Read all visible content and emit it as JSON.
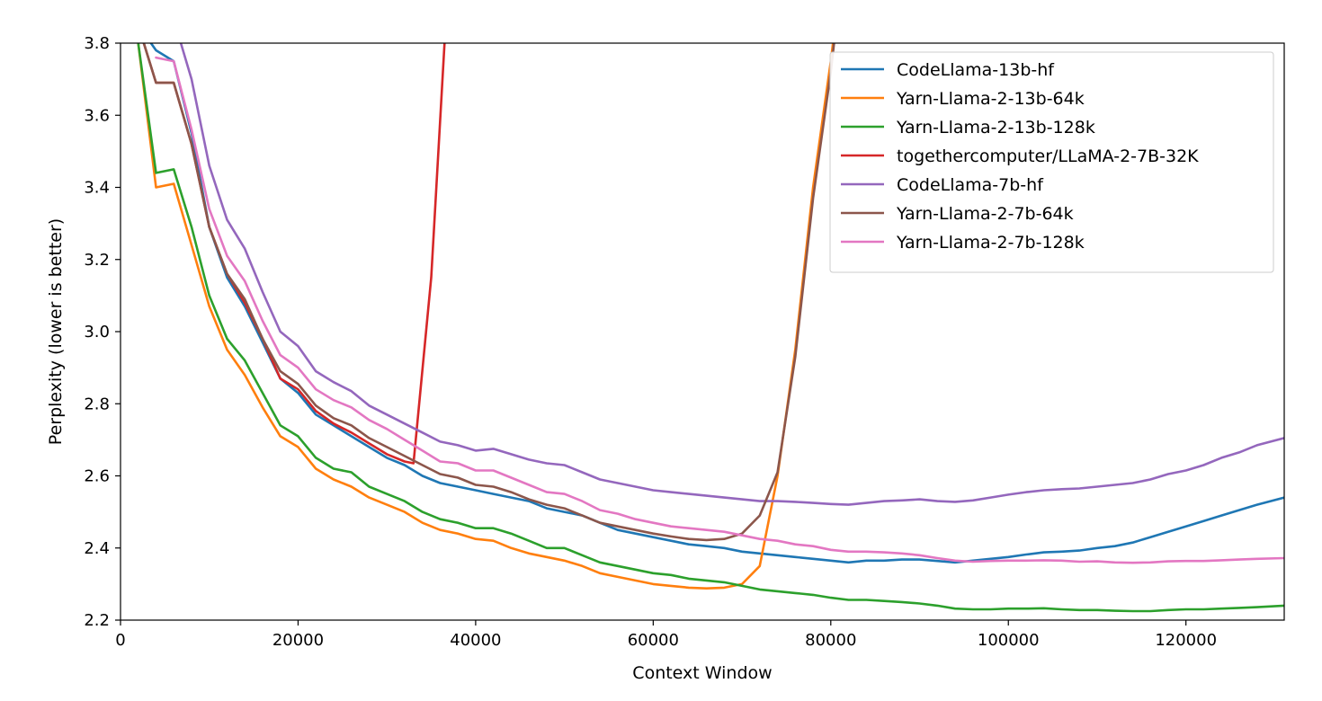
{
  "chart_data": {
    "type": "line",
    "title": "",
    "xlabel": "Context Window",
    "ylabel": "Perplexity (lower is better)",
    "xlim": [
      0,
      131072
    ],
    "ylim": [
      2.2,
      3.8
    ],
    "xticks": [
      0,
      20000,
      40000,
      60000,
      80000,
      100000,
      120000
    ],
    "yticks": [
      2.2,
      2.4,
      2.6,
      2.8,
      3.0,
      3.2,
      3.4,
      3.6,
      3.8
    ],
    "xtick_labels": [
      "0",
      "20000",
      "40000",
      "60000",
      "80000",
      "100000",
      "120000"
    ],
    "ytick_labels": [
      "2.2",
      "2.4",
      "2.6",
      "2.8",
      "3.0",
      "3.2",
      "3.4",
      "3.6",
      "3.8"
    ],
    "grid": false,
    "legend_position": "top-right",
    "series": [
      {
        "name": "CodeLlama-13b-hf",
        "color": "#1f77b4",
        "x": [
          2000,
          4000,
          6000,
          8000,
          10000,
          12000,
          14000,
          16000,
          18000,
          20000,
          22000,
          24000,
          26000,
          28000,
          30000,
          32000,
          34000,
          36000,
          38000,
          40000,
          42000,
          44000,
          46000,
          48000,
          50000,
          52000,
          54000,
          56000,
          58000,
          60000,
          62000,
          64000,
          66000,
          68000,
          70000,
          72000,
          74000,
          76000,
          78000,
          80000,
          82000,
          84000,
          86000,
          88000,
          90000,
          92000,
          94000,
          96000,
          98000,
          100000,
          102000,
          104000,
          106000,
          108000,
          110000,
          112000,
          114000,
          116000,
          118000,
          120000,
          122000,
          124000,
          126000,
          128000,
          131072
        ],
        "y": [
          3.85,
          3.78,
          3.75,
          3.55,
          3.29,
          3.15,
          3.07,
          2.97,
          2.87,
          2.83,
          2.77,
          2.74,
          2.71,
          2.68,
          2.65,
          2.63,
          2.6,
          2.58,
          2.57,
          2.56,
          2.55,
          2.54,
          2.53,
          2.51,
          2.5,
          2.49,
          2.47,
          2.45,
          2.44,
          2.43,
          2.42,
          2.41,
          2.405,
          2.4,
          2.39,
          2.385,
          2.38,
          2.375,
          2.37,
          2.365,
          2.36,
          2.365,
          2.365,
          2.368,
          2.368,
          2.364,
          2.36,
          2.365,
          2.37,
          2.375,
          2.382,
          2.388,
          2.39,
          2.393,
          2.4,
          2.405,
          2.415,
          2.43,
          2.445,
          2.46,
          2.475,
          2.49,
          2.505,
          2.52,
          2.54
        ]
      },
      {
        "name": "Yarn-Llama-2-13b-64k",
        "color": "#ff7f0e",
        "x": [
          2000,
          4000,
          6000,
          8000,
          10000,
          12000,
          14000,
          16000,
          18000,
          20000,
          22000,
          24000,
          26000,
          28000,
          30000,
          32000,
          34000,
          36000,
          38000,
          40000,
          42000,
          44000,
          46000,
          48000,
          50000,
          52000,
          54000,
          56000,
          58000,
          60000,
          62000,
          64000,
          66000,
          68000,
          70000,
          72000,
          74000,
          76000,
          78000,
          80000,
          80500
        ],
        "y": [
          3.8,
          3.4,
          3.41,
          3.24,
          3.07,
          2.95,
          2.88,
          2.79,
          2.71,
          2.68,
          2.62,
          2.59,
          2.57,
          2.54,
          2.52,
          2.5,
          2.47,
          2.45,
          2.44,
          2.425,
          2.42,
          2.4,
          2.385,
          2.375,
          2.365,
          2.35,
          2.33,
          2.32,
          2.31,
          2.3,
          2.295,
          2.29,
          2.288,
          2.29,
          2.3,
          2.35,
          2.6,
          2.95,
          3.4,
          3.75,
          3.85
        ]
      },
      {
        "name": "Yarn-Llama-2-13b-128k",
        "color": "#2ca02c",
        "x": [
          2000,
          4000,
          6000,
          8000,
          10000,
          12000,
          14000,
          16000,
          18000,
          20000,
          22000,
          24000,
          26000,
          28000,
          30000,
          32000,
          34000,
          36000,
          38000,
          40000,
          42000,
          44000,
          46000,
          48000,
          50000,
          52000,
          54000,
          56000,
          58000,
          60000,
          62000,
          64000,
          66000,
          68000,
          70000,
          72000,
          74000,
          76000,
          78000,
          80000,
          82000,
          84000,
          86000,
          88000,
          90000,
          92000,
          94000,
          96000,
          98000,
          100000,
          102000,
          104000,
          106000,
          108000,
          110000,
          112000,
          114000,
          116000,
          118000,
          120000,
          122000,
          124000,
          126000,
          128000,
          131072
        ],
        "y": [
          3.8,
          3.44,
          3.45,
          3.29,
          3.1,
          2.98,
          2.92,
          2.83,
          2.74,
          2.71,
          2.65,
          2.62,
          2.61,
          2.57,
          2.55,
          2.53,
          2.5,
          2.48,
          2.47,
          2.455,
          2.455,
          2.44,
          2.42,
          2.4,
          2.4,
          2.38,
          2.36,
          2.35,
          2.34,
          2.33,
          2.325,
          2.315,
          2.31,
          2.305,
          2.295,
          2.285,
          2.28,
          2.275,
          2.27,
          2.262,
          2.256,
          2.256,
          2.253,
          2.25,
          2.246,
          2.24,
          2.232,
          2.23,
          2.23,
          2.232,
          2.232,
          2.233,
          2.23,
          2.228,
          2.228,
          2.226,
          2.225,
          2.225,
          2.228,
          2.23,
          2.23,
          2.232,
          2.234,
          2.236,
          2.24
        ]
      },
      {
        "name": "togethercomputer/LLaMA-2-7B-32K",
        "color": "#d62728",
        "x": [
          2000,
          4000,
          6000,
          8000,
          10000,
          12000,
          14000,
          16000,
          18000,
          20000,
          22000,
          24000,
          26000,
          28000,
          30000,
          32000,
          33000,
          35000,
          36500
        ],
        "y": [
          3.85,
          3.69,
          3.69,
          3.52,
          3.29,
          3.16,
          3.08,
          2.98,
          2.87,
          2.84,
          2.78,
          2.745,
          2.72,
          2.69,
          2.66,
          2.64,
          2.635,
          3.15,
          3.8
        ]
      },
      {
        "name": "CodeLlama-7b-hf",
        "color": "#9467bd",
        "x": [
          6800,
          8000,
          10000,
          12000,
          14000,
          16000,
          18000,
          20000,
          22000,
          24000,
          26000,
          28000,
          30000,
          32000,
          34000,
          36000,
          38000,
          40000,
          42000,
          44000,
          46000,
          48000,
          50000,
          52000,
          54000,
          56000,
          58000,
          60000,
          62000,
          64000,
          66000,
          68000,
          70000,
          72000,
          74000,
          76000,
          78000,
          80000,
          82000,
          84000,
          86000,
          88000,
          90000,
          92000,
          94000,
          96000,
          98000,
          100000,
          102000,
          104000,
          106000,
          108000,
          110000,
          112000,
          114000,
          116000,
          118000,
          120000,
          122000,
          124000,
          126000,
          128000,
          131072
        ],
        "y": [
          3.8,
          3.7,
          3.46,
          3.31,
          3.23,
          3.11,
          3.0,
          2.96,
          2.89,
          2.86,
          2.835,
          2.795,
          2.77,
          2.745,
          2.72,
          2.695,
          2.685,
          2.67,
          2.675,
          2.66,
          2.645,
          2.635,
          2.63,
          2.61,
          2.59,
          2.58,
          2.57,
          2.56,
          2.555,
          2.55,
          2.545,
          2.54,
          2.535,
          2.53,
          2.53,
          2.528,
          2.525,
          2.522,
          2.52,
          2.525,
          2.53,
          2.532,
          2.535,
          2.53,
          2.528,
          2.532,
          2.54,
          2.548,
          2.555,
          2.56,
          2.563,
          2.565,
          2.57,
          2.575,
          2.58,
          2.59,
          2.605,
          2.615,
          2.63,
          2.65,
          2.665,
          2.685,
          2.705
        ]
      },
      {
        "name": "Yarn-Llama-2-7b-64k",
        "color": "#8c564b",
        "x": [
          2000,
          4000,
          6000,
          8000,
          10000,
          12000,
          14000,
          16000,
          18000,
          20000,
          22000,
          24000,
          26000,
          28000,
          30000,
          32000,
          34000,
          36000,
          38000,
          40000,
          42000,
          44000,
          46000,
          48000,
          50000,
          52000,
          54000,
          56000,
          58000,
          60000,
          62000,
          64000,
          66000,
          68000,
          70000,
          72000,
          74000,
          76000,
          78000,
          80000,
          80600
        ],
        "y": [
          3.85,
          3.69,
          3.69,
          3.52,
          3.29,
          3.16,
          3.09,
          2.98,
          2.89,
          2.855,
          2.795,
          2.76,
          2.74,
          2.705,
          2.68,
          2.655,
          2.63,
          2.605,
          2.595,
          2.575,
          2.57,
          2.555,
          2.535,
          2.52,
          2.51,
          2.49,
          2.47,
          2.46,
          2.45,
          2.44,
          2.432,
          2.425,
          2.422,
          2.425,
          2.44,
          2.49,
          2.61,
          2.93,
          3.37,
          3.72,
          3.85
        ]
      },
      {
        "name": "Yarn-Llama-2-7b-128k",
        "color": "#e377c2",
        "x": [
          4000,
          6000,
          8000,
          10000,
          12000,
          14000,
          16000,
          18000,
          20000,
          22000,
          24000,
          26000,
          28000,
          30000,
          32000,
          34000,
          36000,
          38000,
          40000,
          42000,
          44000,
          46000,
          48000,
          50000,
          52000,
          54000,
          56000,
          58000,
          60000,
          62000,
          64000,
          66000,
          68000,
          70000,
          72000,
          74000,
          76000,
          78000,
          80000,
          82000,
          84000,
          86000,
          88000,
          90000,
          92000,
          94000,
          96000,
          98000,
          100000,
          102000,
          104000,
          106000,
          108000,
          110000,
          112000,
          114000,
          116000,
          118000,
          120000,
          122000,
          124000,
          126000,
          128000,
          131072
        ],
        "y": [
          3.76,
          3.75,
          3.56,
          3.34,
          3.21,
          3.14,
          3.03,
          2.935,
          2.9,
          2.84,
          2.81,
          2.79,
          2.755,
          2.73,
          2.7,
          2.67,
          2.64,
          2.635,
          2.615,
          2.615,
          2.595,
          2.575,
          2.555,
          2.55,
          2.53,
          2.505,
          2.495,
          2.48,
          2.47,
          2.46,
          2.455,
          2.45,
          2.445,
          2.435,
          2.425,
          2.42,
          2.41,
          2.405,
          2.395,
          2.39,
          2.39,
          2.388,
          2.385,
          2.38,
          2.372,
          2.365,
          2.362,
          2.364,
          2.365,
          2.365,
          2.366,
          2.365,
          2.362,
          2.363,
          2.36,
          2.359,
          2.36,
          2.363,
          2.364,
          2.364,
          2.366,
          2.368,
          2.37,
          2.372
        ]
      }
    ]
  }
}
